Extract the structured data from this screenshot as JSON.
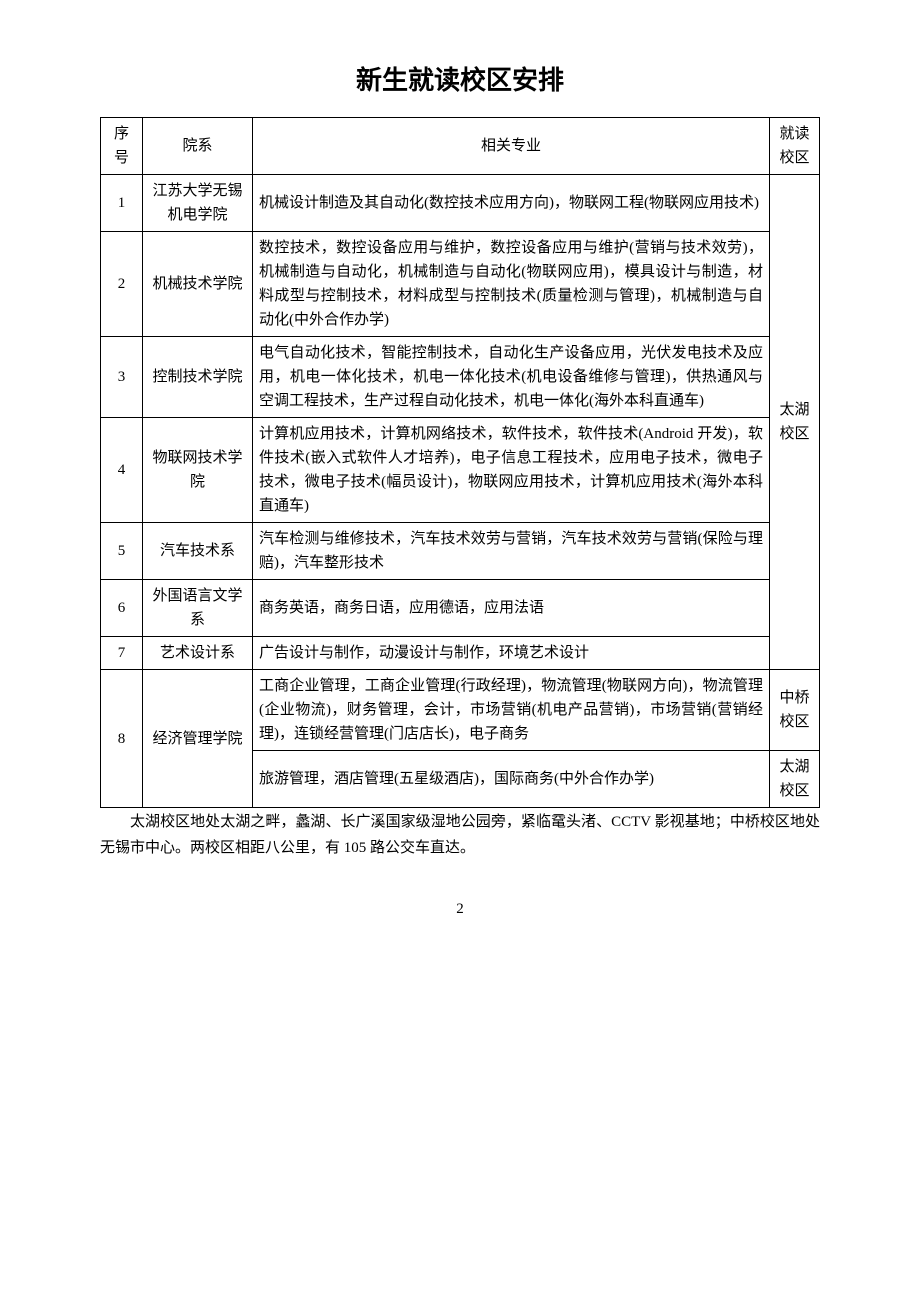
{
  "title": "新生就读校区安排",
  "headers": {
    "num": "序号",
    "dept": "院系",
    "major": "相关专业",
    "campus": "就读校区"
  },
  "rows": [
    {
      "num": "1",
      "dept": "江苏大学无锡机电学院",
      "major": "机械设计制造及其自动化(数控技术应用方向)，物联网工程(物联网应用技术)"
    },
    {
      "num": "2",
      "dept": "机械技术学院",
      "major": "数控技术，数控设备应用与维护，数控设备应用与维护(营销与技术效劳)，机械制造与自动化，机械制造与自动化(物联网应用)，模具设计与制造，材料成型与控制技术，材料成型与控制技术(质量检测与管理)，机械制造与自动化(中外合作办学)"
    },
    {
      "num": "3",
      "dept": "控制技术学院",
      "major": "电气自动化技术，智能控制技术，自动化生产设备应用，光伏发电技术及应用，机电一体化技术，机电一体化技术(机电设备维修与管理)，供热通风与空调工程技术，生产过程自动化技术，机电一体化(海外本科直通车)"
    },
    {
      "num": "4",
      "dept": "物联网技术学院",
      "major": "计算机应用技术，计算机网络技术，软件技术，软件技术(Android 开发)，软件技术(嵌入式软件人才培养)，电子信息工程技术，应用电子技术，微电子技术，微电子技术(幅员设计)，物联网应用技术，计算机应用技术(海外本科直通车)"
    },
    {
      "num": "5",
      "dept": "汽车技术系",
      "major": "汽车检测与维修技术，汽车技术效劳与营销，汽车技术效劳与营销(保险与理赔)，汽车整形技术"
    },
    {
      "num": "6",
      "dept": "外国语言文学系",
      "major": "商务英语，商务日语，应用德语，应用法语"
    },
    {
      "num": "7",
      "dept": "艺术设计系",
      "major": "广告设计与制作，动漫设计与制作，环境艺术设计"
    }
  ],
  "row8": {
    "num": "8",
    "dept": "经济管理学院",
    "major1": "工商企业管理，工商企业管理(行政经理)，物流管理(物联网方向)，物流管理(企业物流)，财务管理，会计，市场营销(机电产品营销)，市场营销(营销经理)，连锁经营管理(门店店长)，电子商务",
    "campus1": "中桥校区",
    "major2": "旅游管理，酒店管理(五星级酒店)，国际商务(中外合作办学)",
    "campus2": "太湖校区"
  },
  "campusTaihu": "太湖校区",
  "footnote": "太湖校区地处太湖之畔，蠡湖、长广溪国家级湿地公园旁，紧临鼋头渚、CCTV 影视基地；中桥校区地处无锡市中心。两校区相距八公里，有 105 路公交车直达。",
  "pageNumber": "2"
}
